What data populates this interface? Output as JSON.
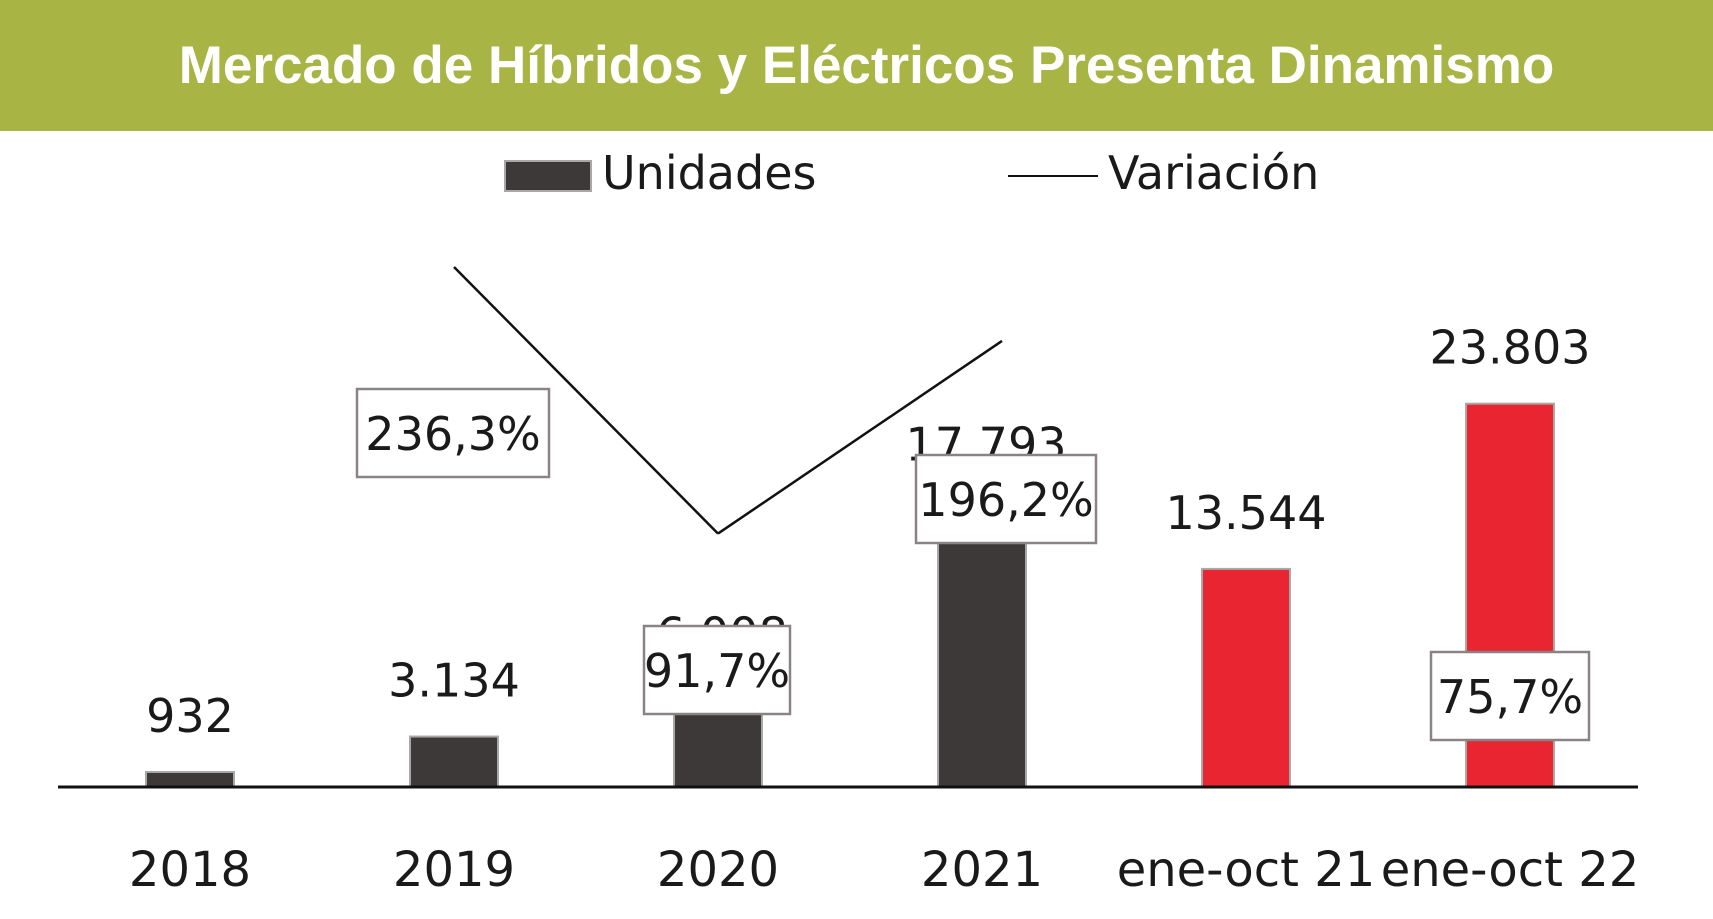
{
  "title": "Mercado de Híbridos y Eléctricos Presenta Dinamismo",
  "colors": {
    "banner": "#a8b545",
    "bar_annual": "#3d3938",
    "bar_ytd": "#e92531",
    "line": "#111111"
  },
  "chart_data": {
    "type": "bar",
    "title": "Mercado de Híbridos y Eléctricos Presenta Dinamismo",
    "categories": [
      "2018",
      "2019",
      "2020",
      "2021",
      "ene-oct 21",
      "ene-oct 22"
    ],
    "series": [
      {
        "name": "Unidades",
        "type": "bar",
        "values": [
          932,
          3134,
          6008,
          17793,
          13544,
          23803
        ],
        "labels": [
          "932",
          "3.134",
          "6.008",
          "17.793",
          "13.544",
          "23.803"
        ],
        "colors": [
          "#3d3938",
          "#3d3938",
          "#3d3938",
          "#3d3938",
          "#e92531",
          "#e92531"
        ]
      },
      {
        "name": "Variación",
        "type": "line",
        "values": [
          null,
          236.3,
          91.7,
          196.2,
          null,
          75.7
        ],
        "labels": [
          null,
          "236,3%",
          "91,7%",
          "196,2%",
          null,
          "75,7%"
        ]
      }
    ],
    "legend": "top",
    "grid": false,
    "ylim": [
      0,
      26000
    ]
  }
}
